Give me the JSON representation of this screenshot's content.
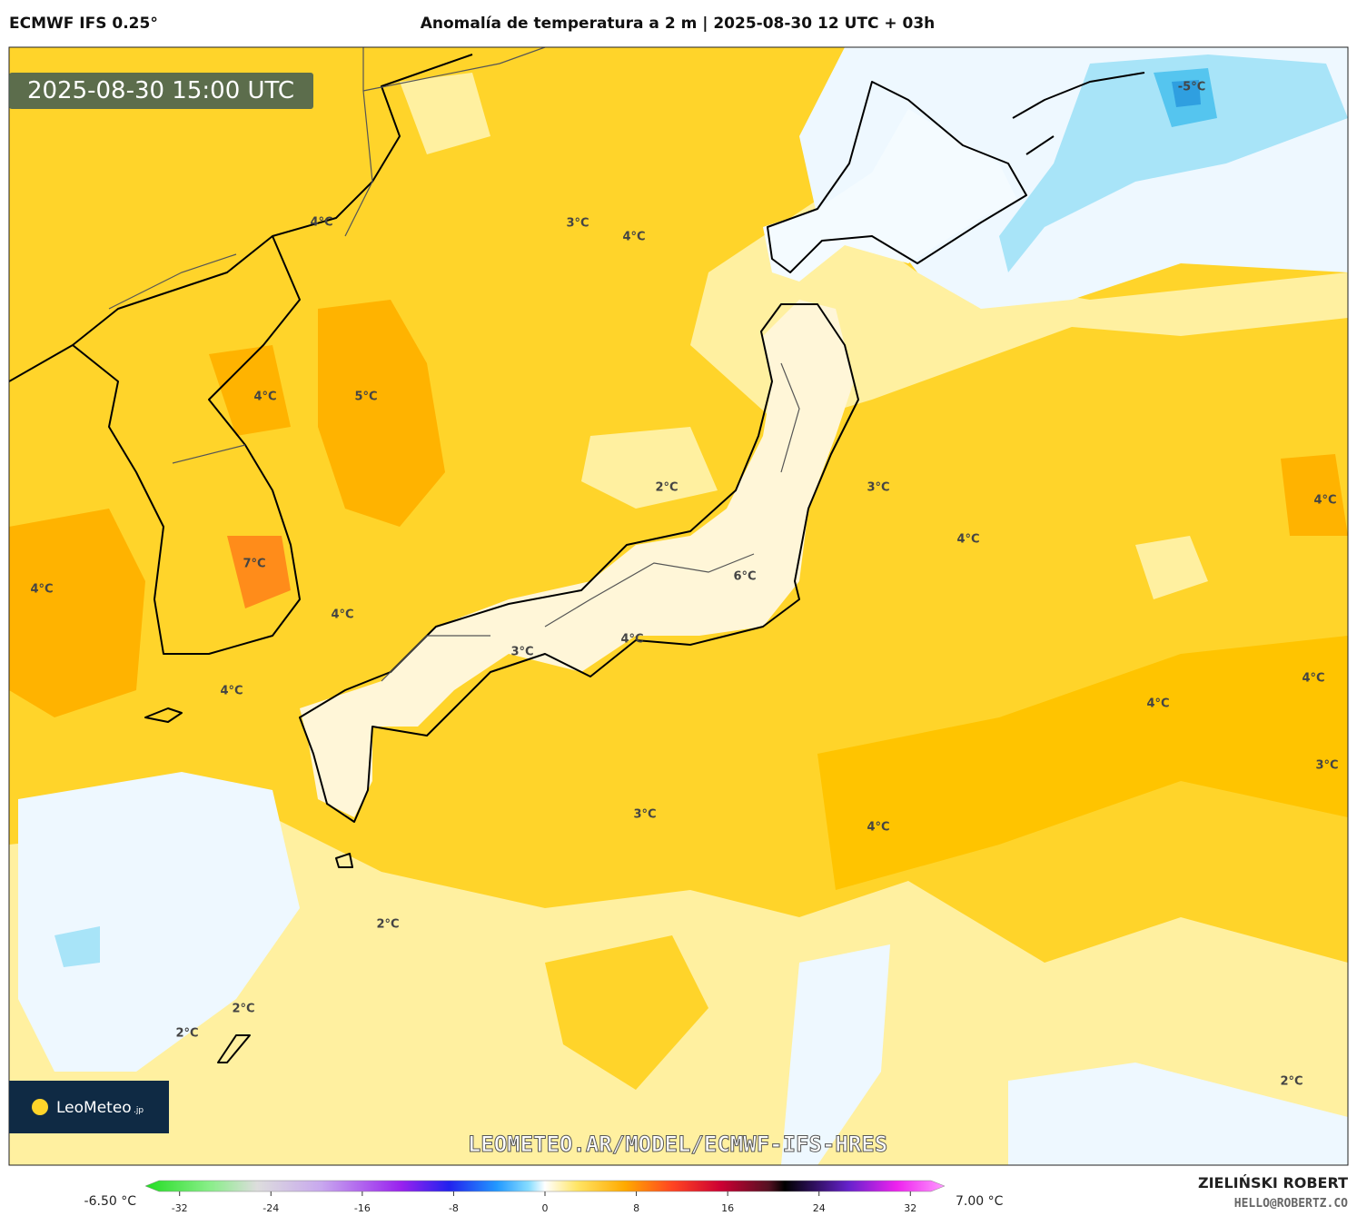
{
  "header": {
    "model": "ECMWF IFS 0.25°",
    "title": "Anomalía de temperatura a 2 m | 2025-08-30 12 UTC + 03h"
  },
  "map": {
    "timestamp": "2025-08-30 15:00 UTC",
    "watermark": "LEOMETEO.AR/MODEL/ECMWF-IFS-HRES",
    "logo": "LeoMeteo",
    "logo_suffix": ".jp",
    "contour_labels": [
      "-5°C",
      "4°C",
      "3°C",
      "4°C",
      "4°C",
      "5°C",
      "2°C",
      "3°C",
      "4°C",
      "4°C",
      "7°C",
      "6°C",
      "4°C",
      "4°C",
      "4°C",
      "3°C",
      "4°C",
      "4°C",
      "4°C",
      "3°C",
      "3°C",
      "4°C",
      "2°C",
      "2°C",
      "2°C",
      "2°C"
    ]
  },
  "colorbar": {
    "min_label": "-6.50 °C",
    "max_label": "7.00 °C",
    "range": [
      -35,
      35
    ],
    "ticks": [
      -32,
      -24,
      -16,
      -8,
      0,
      8,
      16,
      24,
      32
    ]
  },
  "credits": {
    "author": "ZIELIŃSKI ROBERT",
    "email": "HELLO@ROBERTZ.CO"
  }
}
